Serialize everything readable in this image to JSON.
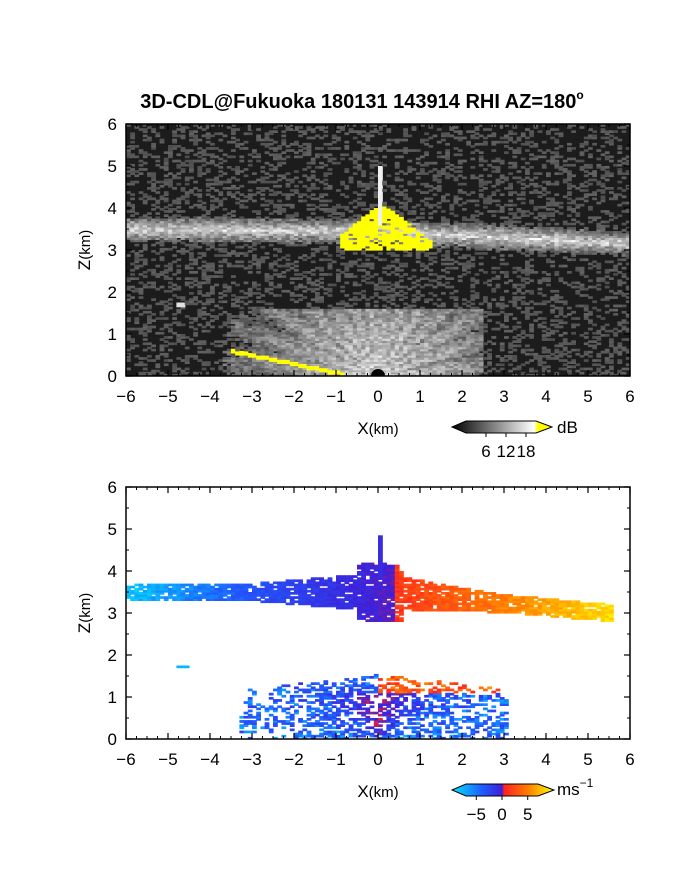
{
  "figure": {
    "title": "3D-CDL@Fukuoka 180131 143914 RHI AZ=180",
    "title_degree": "o"
  },
  "chart_data": [
    {
      "type": "heatmap",
      "name": "backscatter",
      "xlabel_main": "X",
      "xlabel_unit": "(km)",
      "ylabel_main": "Z",
      "ylabel_unit": "(km)",
      "xlim": [
        -6,
        6
      ],
      "ylim": [
        0,
        6
      ],
      "x_ticks": [
        "−6",
        "−5",
        "−4",
        "−3",
        "−2",
        "−1",
        "0",
        "1",
        "2",
        "3",
        "4",
        "5",
        "6"
      ],
      "y_ticks": [
        "0",
        "1",
        "2",
        "3",
        "4",
        "5",
        "6"
      ],
      "colorbar": {
        "unit": "dB",
        "ticks": [
          "6",
          "12",
          "18"
        ],
        "tick_values": [
          6,
          12,
          18
        ],
        "range": [
          0,
          21
        ],
        "colors": [
          "#000000",
          "#ffffff",
          "#ffff00"
        ]
      },
      "features": {
        "cloud_layer": {
          "x": [
            -6,
            6
          ],
          "z_center_west": 3.5,
          "z_center_east": 3.15,
          "z_center_mid": 3.45,
          "thickness_km": 0.3
        },
        "saturated_core": {
          "x": [
            -0.9,
            1.3
          ],
          "z": [
            3.0,
            4.05
          ],
          "value_db": 19
        },
        "spike": {
          "x": 0.05,
          "z": [
            3.6,
            5.0
          ]
        },
        "lowlevel_fan": {
          "x": [
            -3.8,
            2.5
          ],
          "z": [
            0,
            1.6
          ]
        },
        "ground_echo": {
          "x": [
            -3.5,
            -0.8
          ],
          "z": [
            0.05,
            0.6
          ],
          "value_db": 19
        },
        "isolated_echo": {
          "x": -4.7,
          "z": 1.7
        }
      }
    },
    {
      "type": "heatmap",
      "name": "doppler_velocity",
      "xlabel_main": "X",
      "xlabel_unit": "(km)",
      "ylabel_main": "Z",
      "ylabel_unit": "(km)",
      "xlim": [
        -6,
        6
      ],
      "ylim": [
        0,
        6
      ],
      "x_ticks": [
        "−6",
        "−5",
        "−4",
        "−3",
        "−2",
        "−1",
        "0",
        "1",
        "2",
        "3",
        "4",
        "5",
        "6"
      ],
      "y_ticks": [
        "0",
        "1",
        "2",
        "3",
        "4",
        "5",
        "6"
      ],
      "colorbar": {
        "unit": "ms",
        "unit_exponent": "−1",
        "ticks": [
          "−5",
          "0",
          "5"
        ],
        "tick_values": [
          -5,
          0,
          5
        ],
        "range": [
          -7,
          7
        ],
        "colors": [
          "#00e5ff",
          "#1f5bff",
          "#3f1fd8",
          "#ff2020",
          "#ff8000",
          "#ffff00"
        ]
      },
      "features": {
        "cloud_layer": {
          "x": [
            -6,
            5.6
          ],
          "z_center_west": 3.5,
          "z_center_east": 3.0,
          "z_center_mid": 3.5,
          "thickness_km": 0.35,
          "v_west": -6,
          "v_east": 6
        },
        "spike": {
          "x": 0.05,
          "z": [
            3.8,
            4.8
          ],
          "v": -2
        },
        "lowlevel_fan": {
          "x": [
            -3.5,
            3.1
          ],
          "z": [
            0,
            1.6
          ]
        },
        "isolated_echo": {
          "x": -4.7,
          "z": 1.7,
          "v": -6
        }
      }
    }
  ]
}
